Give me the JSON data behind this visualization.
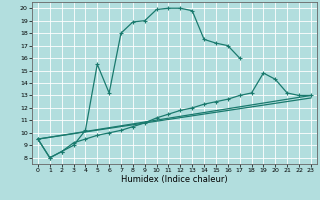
{
  "xlabel": "Humidex (Indice chaleur)",
  "bg_color": "#b2dede",
  "grid_color": "#ffffff",
  "line_color": "#1a7a6e",
  "xlim": [
    -0.5,
    23.5
  ],
  "ylim": [
    7.5,
    20.5
  ],
  "xticks": [
    0,
    1,
    2,
    3,
    4,
    5,
    6,
    7,
    8,
    9,
    10,
    11,
    12,
    13,
    14,
    15,
    16,
    17,
    18,
    19,
    20,
    21,
    22,
    23
  ],
  "yticks": [
    8,
    9,
    10,
    11,
    12,
    13,
    14,
    15,
    16,
    17,
    18,
    19,
    20
  ],
  "curve1_x": [
    0,
    1,
    2,
    3,
    4,
    5,
    6,
    7,
    8,
    9,
    10,
    11,
    12,
    13,
    14,
    15,
    16,
    17
  ],
  "curve1_y": [
    9.5,
    8.0,
    8.5,
    9.0,
    10.2,
    15.5,
    13.2,
    18.0,
    18.9,
    19.0,
    19.9,
    20.0,
    20.0,
    19.8,
    17.5,
    17.2,
    17.0,
    16.0
  ],
  "curve2_x": [
    0,
    1,
    2,
    3,
    4,
    5,
    6,
    7,
    8,
    9,
    10,
    11,
    12,
    13,
    14,
    15,
    16,
    17,
    18,
    19,
    20,
    21,
    22,
    23
  ],
  "curve2_y": [
    9.5,
    8.0,
    8.5,
    9.2,
    9.5,
    9.8,
    10.0,
    10.2,
    10.5,
    10.8,
    11.2,
    11.5,
    11.8,
    12.0,
    12.3,
    12.5,
    12.7,
    13.0,
    13.2,
    14.8,
    14.3,
    13.2,
    13.0,
    13.0
  ],
  "line3_x": [
    0,
    23
  ],
  "line3_y": [
    9.5,
    13.0
  ],
  "line4_x": [
    0,
    23
  ],
  "line4_y": [
    9.5,
    12.8
  ],
  "lw": 0.9,
  "ms": 3.5
}
